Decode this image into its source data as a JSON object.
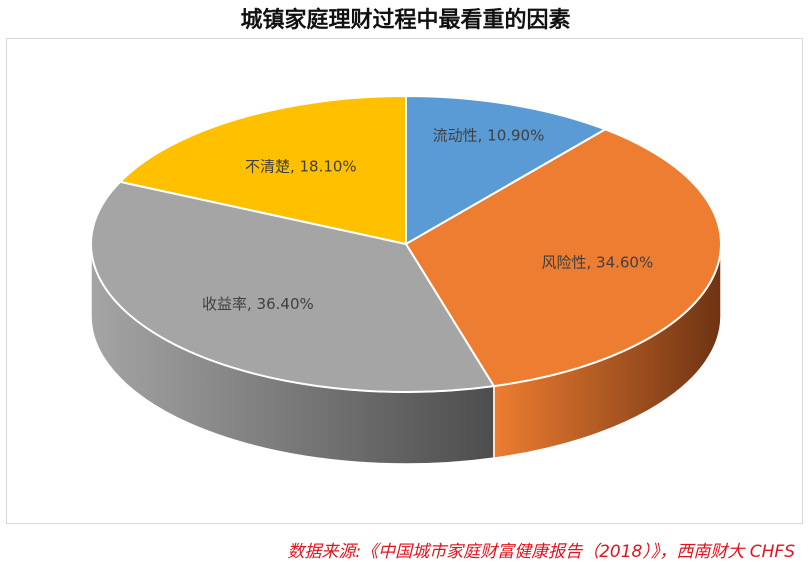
{
  "chart_data": {
    "type": "pie",
    "title": "城镇家庭理财过程中最看重的因素",
    "slices": [
      {
        "label": "流动性",
        "value": 10.9,
        "display": "流动性, 10.90%",
        "color": "#5b9bd5",
        "side_color": "#2e5f8e"
      },
      {
        "label": "风险性",
        "value": 34.6,
        "display": "风险性, 34.60%",
        "color": "#ed7d31",
        "side_color": "#6e3313"
      },
      {
        "label": "收益率",
        "value": 36.4,
        "display": "收益率, 36.40%",
        "color": "#a5a5a5",
        "side_color": "#4d4d4d"
      },
      {
        "label": "不清楚",
        "value": 18.1,
        "display": "不清楚, 18.10%",
        "color": "#ffc000",
        "side_color": "#8a6800"
      }
    ],
    "style": "3d"
  },
  "source": "数据来源:《中国城市家庭财富健康报告（2018）》，西南财大 CHFS"
}
